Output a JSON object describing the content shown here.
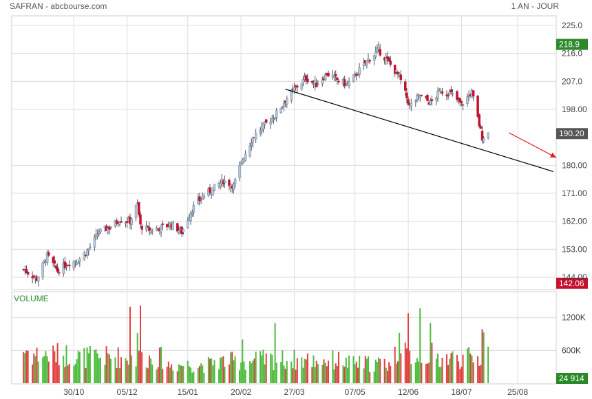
{
  "header": {
    "title": "SAFRAN - abcbourse.com",
    "period": "1 AN - JOUR"
  },
  "colors": {
    "up": "#b7c9dc",
    "down": "#c8102e",
    "vol_up": "#4cbb3c",
    "vol_down": "#e04040",
    "grid": "#dcdcdc",
    "trend": "#000000",
    "arrow": "#e02020"
  },
  "chart_data": [
    {
      "type": "candlestick",
      "title": "",
      "y_ticks": [
        "225.0",
        "216.0",
        "207.0",
        "198.00",
        "180.00",
        "171.00",
        "162.00",
        "153.00",
        "144.00"
      ],
      "ylim": [
        142.06,
        228.5
      ],
      "x_ticks": [
        "30/10",
        "05/12",
        "15/01",
        "20/02",
        "27/03",
        "07/05",
        "12/06",
        "18/07",
        "25/08"
      ],
      "badges": [
        {
          "text": "218.9",
          "value": 218.9,
          "color": "#2a8a2a"
        },
        {
          "text": "190.20",
          "value": 190.2,
          "color": "#555555"
        },
        {
          "text": "142.06",
          "value": 142.06,
          "color": "#c8102e"
        }
      ],
      "close_series": [
        {
          "date": "2023-09-26",
          "value": 146.5
        },
        {
          "date": "2023-10-05",
          "value": 143.5
        },
        {
          "date": "2023-10-12",
          "value": 151.0
        },
        {
          "date": "2023-10-19",
          "value": 146.0
        },
        {
          "date": "2023-10-26",
          "value": 148.5
        },
        {
          "date": "2023-11-02",
          "value": 149.5
        },
        {
          "date": "2023-11-09",
          "value": 153.0
        },
        {
          "date": "2023-11-16",
          "value": 158.5
        },
        {
          "date": "2023-11-23",
          "value": 160.0
        },
        {
          "date": "2023-11-30",
          "value": 162.5
        },
        {
          "date": "2023-12-07",
          "value": 162.0
        },
        {
          "date": "2023-12-12",
          "value": 167.5
        },
        {
          "date": "2023-12-14",
          "value": 160.5
        },
        {
          "date": "2023-12-21",
          "value": 159.0
        },
        {
          "date": "2024-01-04",
          "value": 161.0
        },
        {
          "date": "2024-01-11",
          "value": 158.5
        },
        {
          "date": "2024-01-18",
          "value": 166.0
        },
        {
          "date": "2024-01-25",
          "value": 170.0
        },
        {
          "date": "2024-02-01",
          "value": 172.5
        },
        {
          "date": "2024-02-08",
          "value": 175.0
        },
        {
          "date": "2024-02-15",
          "value": 173.5
        },
        {
          "date": "2024-02-21",
          "value": 182.0
        },
        {
          "date": "2024-02-28",
          "value": 189.0
        },
        {
          "date": "2024-03-07",
          "value": 193.0
        },
        {
          "date": "2024-03-14",
          "value": 196.0
        },
        {
          "date": "2024-03-21",
          "value": 201.0
        },
        {
          "date": "2024-03-28",
          "value": 205.0
        },
        {
          "date": "2024-04-04",
          "value": 208.0
        },
        {
          "date": "2024-04-11",
          "value": 206.0
        },
        {
          "date": "2024-04-18",
          "value": 209.5
        },
        {
          "date": "2024-04-25",
          "value": 207.5
        },
        {
          "date": "2024-05-02",
          "value": 206.0
        },
        {
          "date": "2024-05-09",
          "value": 210.0
        },
        {
          "date": "2024-05-16",
          "value": 214.0
        },
        {
          "date": "2024-05-23",
          "value": 217.0
        },
        {
          "date": "2024-05-30",
          "value": 213.0
        },
        {
          "date": "2024-06-06",
          "value": 208.5
        },
        {
          "date": "2024-06-13",
          "value": 199.0
        },
        {
          "date": "2024-06-20",
          "value": 202.5
        },
        {
          "date": "2024-06-27",
          "value": 200.0
        },
        {
          "date": "2024-07-04",
          "value": 204.0
        },
        {
          "date": "2024-07-11",
          "value": 203.0
        },
        {
          "date": "2024-07-18",
          "value": 199.5
        },
        {
          "date": "2024-07-25",
          "value": 203.5
        },
        {
          "date": "2024-07-30",
          "value": 193.0
        },
        {
          "date": "2024-08-01",
          "value": 189.0
        },
        {
          "date": "2024-08-05",
          "value": 190.2
        }
      ],
      "trendline": {
        "from": {
          "date": "2024-03-21",
          "value": 204.5
        },
        "to": {
          "date": "2024-09-18",
          "value": 178.0
        }
      },
      "projection_arrow": {
        "from": {
          "date": "2024-08-19",
          "value": 190.5
        },
        "to": {
          "date": "2024-09-20",
          "value": 182.5
        }
      }
    },
    {
      "type": "bar",
      "title": "VOLUME",
      "y_ticks": [
        "1200K",
        "600K"
      ],
      "tick_values": [
        1200000,
        600000
      ],
      "ylim": [
        0,
        1650000
      ],
      "badge": {
        "text": "24 914",
        "value": 24914,
        "color": "#2a8a2a"
      },
      "monthly_average": [
        {
          "month": "2023-09",
          "value": 600000
        },
        {
          "month": "2023-10",
          "value": 520000
        },
        {
          "month": "2023-11",
          "value": 480000
        },
        {
          "month": "2023-12",
          "value": 460000
        },
        {
          "month": "2024-01",
          "value": 340000
        },
        {
          "month": "2024-02",
          "value": 400000
        },
        {
          "month": "2024-03",
          "value": 430000
        },
        {
          "month": "2024-04",
          "value": 420000
        },
        {
          "month": "2024-05",
          "value": 360000
        },
        {
          "month": "2024-06",
          "value": 520000
        },
        {
          "month": "2024-07",
          "value": 460000
        },
        {
          "month": "2024-08",
          "value": 560000
        }
      ],
      "spikes": [
        {
          "date": "2023-12-07",
          "value": 1400000
        },
        {
          "date": "2023-12-12",
          "value": 920000
        },
        {
          "date": "2023-12-14",
          "value": 1420000
        },
        {
          "date": "2024-02-21",
          "value": 800000
        },
        {
          "date": "2024-03-14",
          "value": 1100000
        },
        {
          "date": "2024-06-06",
          "value": 920000
        },
        {
          "date": "2024-06-12",
          "value": 1280000
        },
        {
          "date": "2024-06-20",
          "value": 1370000
        },
        {
          "date": "2024-06-27",
          "value": 1100000
        },
        {
          "date": "2024-08-01",
          "value": 990000
        },
        {
          "date": "2024-08-02",
          "value": 930000
        }
      ]
    }
  ]
}
